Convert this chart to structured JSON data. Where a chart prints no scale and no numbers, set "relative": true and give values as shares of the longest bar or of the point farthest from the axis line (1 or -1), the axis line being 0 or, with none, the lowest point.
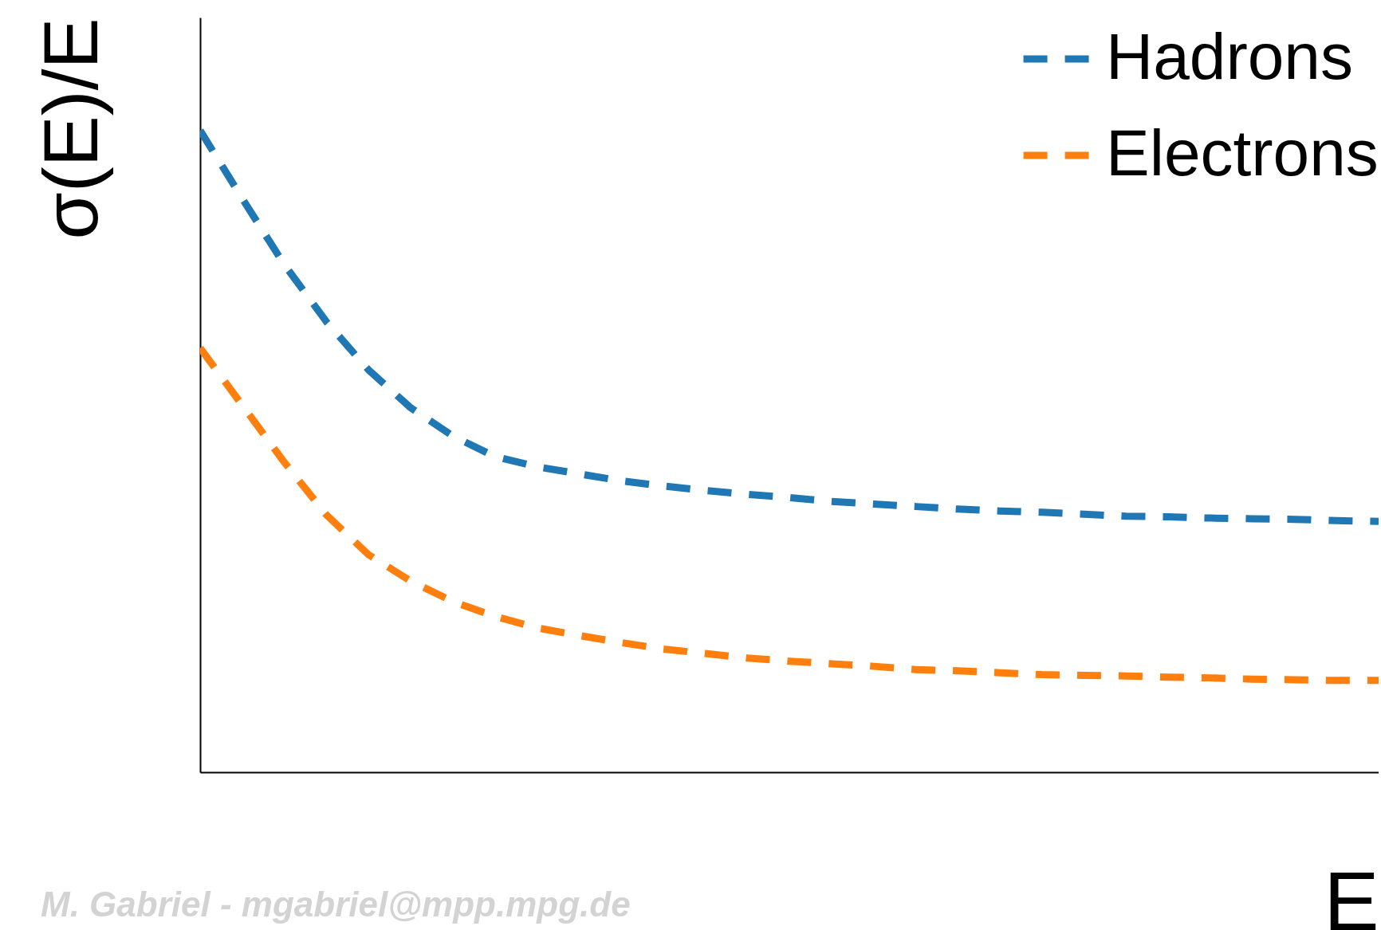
{
  "chart_data": {
    "type": "line",
    "relative": true,
    "xlabel": "E",
    "ylabel": "σ(E)/E",
    "categories": [
      null,
      null,
      null,
      null,
      null,
      null,
      null,
      null,
      null,
      null,
      null,
      null,
      null,
      null,
      null,
      null,
      null,
      null,
      null,
      null,
      null,
      null,
      null,
      null,
      null,
      null,
      null,
      null,
      null
    ],
    "series": [
      {
        "name": "Hadrons",
        "color": "#1f77b4",
        "values": [
          1,
          0.894,
          0.791,
          0.702,
          0.627,
          0.568,
          0.524,
          0.492,
          0.476,
          0.465,
          0.454,
          0.446,
          0.439,
          0.433,
          0.428,
          0.422,
          0.418,
          0.414,
          0.41,
          0.407,
          0.405,
          0.402,
          0.399,
          0.398,
          0.396,
          0.395,
          0.394,
          0.392,
          0.391
        ]
      },
      {
        "name": "Electrons",
        "color": "#ff7f0e",
        "values": [
          0.661,
          0.572,
          0.483,
          0.401,
          0.339,
          0.298,
          0.266,
          0.243,
          0.225,
          0.213,
          0.202,
          0.192,
          0.185,
          0.178,
          0.173,
          0.169,
          0.165,
          0.16,
          0.158,
          0.155,
          0.152,
          0.151,
          0.15,
          0.148,
          0.147,
          0.145,
          0.144,
          0.143,
          0.143
        ]
      }
    ],
    "legend": "top right",
    "line_style": "dashed",
    "marker": "none",
    "grid": false,
    "annotations": [
      "M. Gabriel - mgabriel@mpp.mpg.de"
    ]
  }
}
